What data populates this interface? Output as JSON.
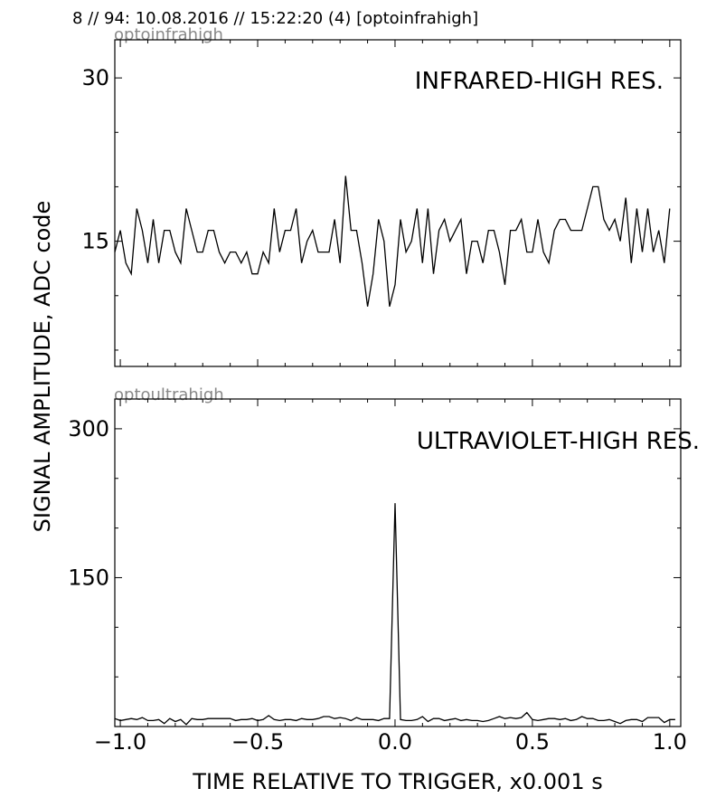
{
  "header": {
    "title": "8 // 94:   10.08.2016 // 15:22:20 (4)  [optoinfrahigh]"
  },
  "chart_data": {
    "type": "line",
    "ylabel": "SIGNAL AMPLITUDE,  ADC code",
    "xlabel": "TIME RELATIVE TO TRIGGER,   x0.001 s",
    "xlim": [
      -1.02,
      1.04
    ],
    "xticks": [
      -1.0,
      -0.5,
      0.0,
      0.5,
      1.0
    ],
    "xtick_labels": [
      "−1.0",
      "−0.5",
      "0.0",
      "0.5",
      "1.0"
    ],
    "grid": false,
    "panels": [
      {
        "tag": "optoinfrahigh",
        "label": "INFRARED-HIGH RES.",
        "ylim": [
          3.5,
          33.5
        ],
        "yticks": [
          15,
          30
        ],
        "ytick_labels": [
          "15",
          "30"
        ],
        "x0": -1.02,
        "dx": 0.02,
        "values": [
          14,
          16,
          13,
          12,
          18,
          16,
          13,
          17,
          13,
          16,
          16,
          14,
          13,
          18,
          16,
          14,
          14,
          16,
          16,
          14,
          13,
          14,
          14,
          13,
          14,
          12,
          12,
          14,
          13,
          18,
          14,
          16,
          16,
          18,
          13,
          15,
          16,
          14,
          14,
          14,
          17,
          13,
          21,
          16,
          16,
          13,
          9,
          12,
          17,
          15,
          9,
          11,
          17,
          14,
          15,
          18,
          13,
          18,
          12,
          16,
          17,
          15,
          16,
          17,
          12,
          15,
          15,
          13,
          16,
          16,
          14,
          11,
          16,
          16,
          17,
          14,
          14,
          17,
          14,
          13,
          16,
          17,
          17,
          16,
          16,
          16,
          18,
          20,
          20,
          17,
          16,
          17,
          15,
          19,
          13,
          18,
          14,
          18,
          14,
          16,
          13,
          18
        ]
      },
      {
        "tag": "optoultrahigh",
        "label": "ULTRAVIOLET-HIGH RES.",
        "ylim": [
          0,
          330
        ],
        "yticks": [
          150,
          300
        ],
        "ytick_labels": [
          "150",
          "300"
        ],
        "x0": -1.02,
        "dx": 0.02,
        "values": [
          8,
          6,
          7,
          8,
          7,
          9,
          6,
          6,
          7,
          3,
          8,
          5,
          7,
          2,
          8,
          7,
          7,
          8,
          8,
          8,
          8,
          8,
          6,
          7,
          7,
          8,
          6,
          7,
          11,
          7,
          6,
          7,
          7,
          6,
          8,
          7,
          7,
          8,
          10,
          10,
          8,
          9,
          8,
          6,
          9,
          7,
          7,
          7,
          6,
          8,
          8,
          225,
          7,
          6,
          6,
          7,
          10,
          5,
          8,
          8,
          6,
          7,
          8,
          6,
          7,
          6,
          6,
          5,
          6,
          8,
          10,
          8,
          9,
          8,
          9,
          14,
          7,
          6,
          7,
          8,
          8,
          7,
          8,
          6,
          7,
          10,
          8,
          8,
          6,
          6,
          7,
          5,
          3,
          6,
          7,
          7,
          5,
          9,
          9,
          9,
          4,
          7,
          7
        ]
      }
    ]
  }
}
